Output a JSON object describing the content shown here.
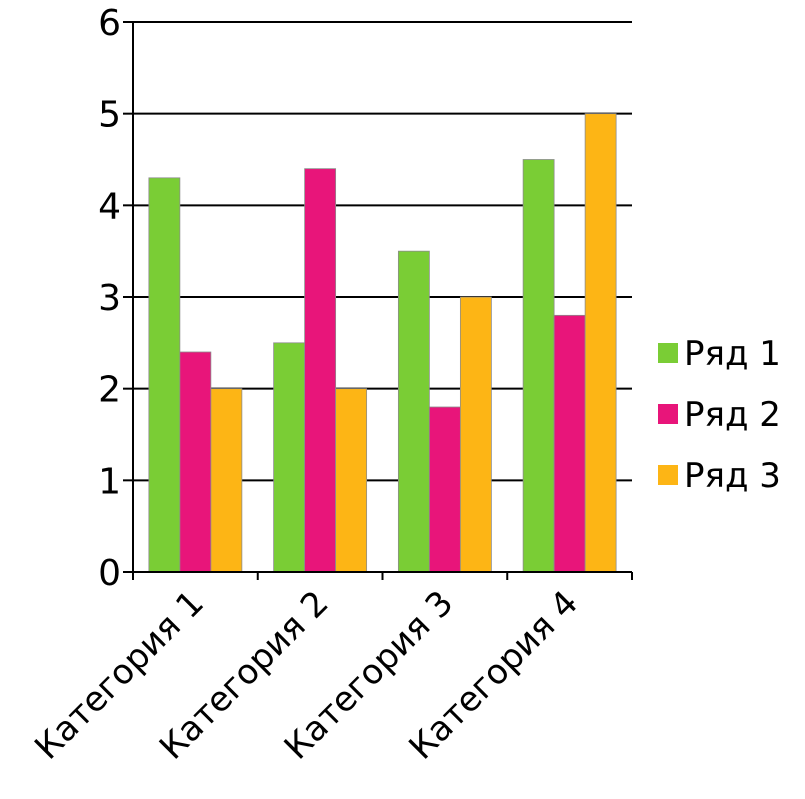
{
  "chart_data": {
    "type": "bar",
    "categories": [
      "Категория 1",
      "Категория 2",
      "Категория 3",
      "Категория 4"
    ],
    "series": [
      {
        "name": "Ряд 1",
        "values": [
          4.3,
          2.5,
          3.5,
          4.5
        ],
        "color": "#7ACD35"
      },
      {
        "name": "Ряд 2",
        "values": [
          2.4,
          4.4,
          1.8,
          2.8
        ],
        "color": "#E8157A"
      },
      {
        "name": "Ряд 3",
        "values": [
          2.0,
          2.0,
          3.0,
          5.0
        ],
        "color": "#FDB515"
      }
    ],
    "y_ticks": [
      "0",
      "1",
      "2",
      "3",
      "4",
      "5",
      "6"
    ],
    "ylim": [
      0,
      6
    ],
    "grid": true,
    "legend_position": "right"
  }
}
